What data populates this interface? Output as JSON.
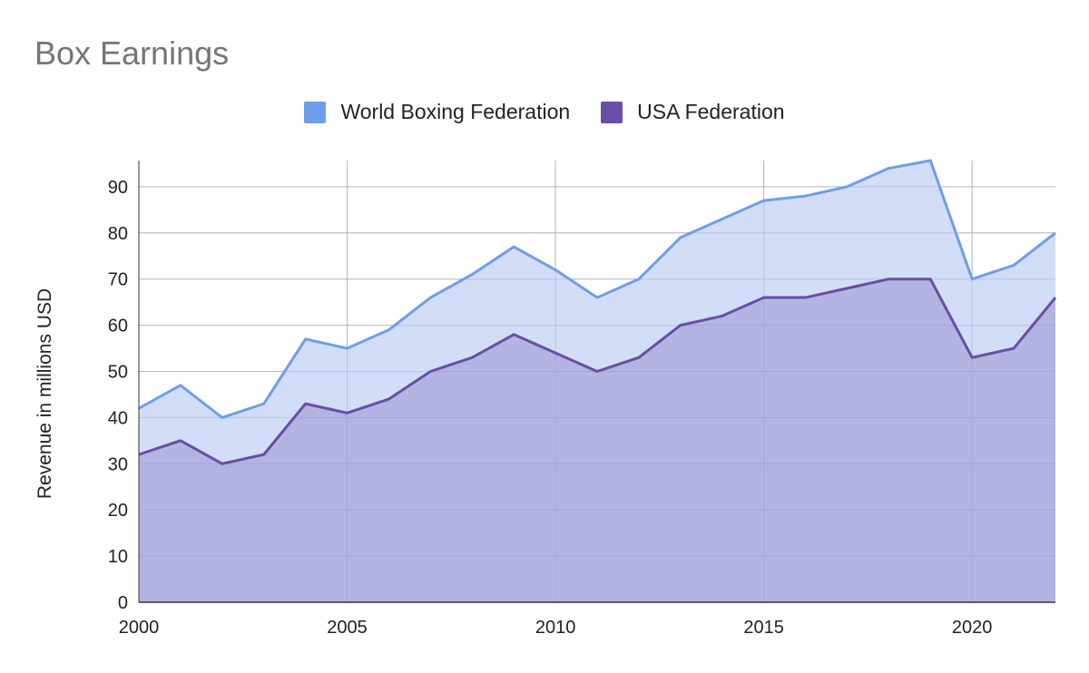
{
  "chart_data": {
    "type": "area",
    "title": "Box Earnings",
    "xlabel": "",
    "ylabel": "Revenue in millions USD",
    "x": [
      2000,
      2001,
      2002,
      2003,
      2004,
      2005,
      2006,
      2007,
      2008,
      2009,
      2010,
      2011,
      2012,
      2013,
      2014,
      2015,
      2016,
      2017,
      2018,
      2019,
      2020,
      2021,
      2022
    ],
    "series": [
      {
        "name": "World Boxing Federation",
        "color": "#6d9eeb",
        "fill": "#d2def7",
        "values": [
          42,
          47,
          40,
          43,
          57,
          55,
          59,
          66,
          71,
          77,
          72,
          66,
          70,
          79,
          83,
          87,
          88,
          90,
          94,
          96,
          70,
          73,
          80
        ]
      },
      {
        "name": "USA Federation",
        "color": "#674ea7",
        "fill": "#b3b4e2",
        "values": [
          32,
          35,
          30,
          32,
          43,
          41,
          44,
          50,
          53,
          58,
          54,
          50,
          53,
          60,
          62,
          66,
          66,
          68,
          70,
          70,
          53,
          55,
          66
        ]
      }
    ],
    "ylim": [
      0,
      96
    ],
    "xlim": [
      2000,
      2022
    ],
    "y_ticks": [
      "0",
      "10",
      "20",
      "30",
      "40",
      "50",
      "60",
      "70",
      "80",
      "90"
    ],
    "x_ticks": [
      "2000",
      "2005",
      "2010",
      "2015",
      "2020"
    ],
    "grid": true,
    "legend": "top-center"
  }
}
